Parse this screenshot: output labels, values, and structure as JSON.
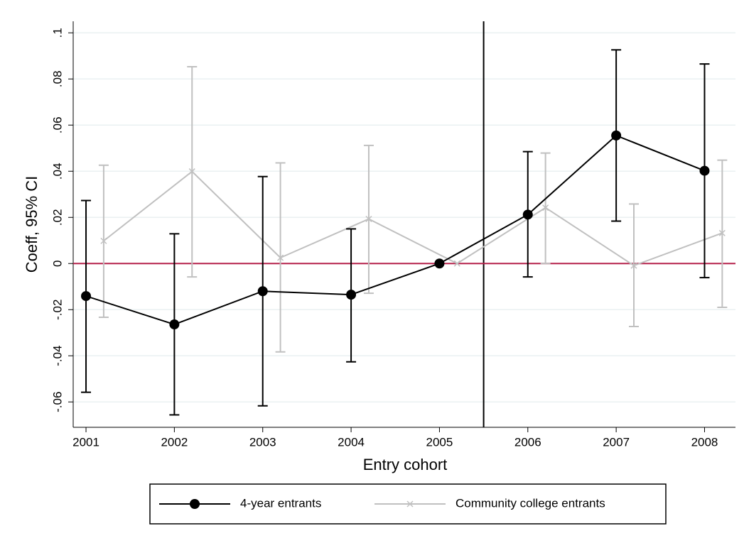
{
  "chart_data": {
    "type": "errorbar-line",
    "x_label": "Entry cohort",
    "y_label": "Coeff, 95% CI",
    "xlim": [
      2000.855,
      2008.35
    ],
    "xticks": [
      2001,
      2002,
      2003,
      2004,
      2005,
      2006,
      2007,
      2008
    ],
    "ylim": [
      -0.071,
      0.105
    ],
    "yticks": [
      {
        "value": -0.06,
        "label": "-.06"
      },
      {
        "value": -0.04,
        "label": "-.04"
      },
      {
        "value": -0.02,
        "label": "-.02"
      },
      0,
      {
        "value": 0.02,
        "label": ".02"
      },
      {
        "value": 0.04,
        "label": ".04"
      },
      {
        "value": 0.06,
        "label": ".06"
      },
      {
        "value": 0.08,
        "label": ".08"
      },
      {
        "value": 0.1,
        "label": ".1"
      }
    ],
    "grid": true,
    "xline": 2005.5,
    "yline": 0,
    "yline_color": "#b5204a",
    "legend": "bottom",
    "series": [
      {
        "name": "4-year entrants",
        "color": "#000000",
        "marker": "circle",
        "x": [
          2001,
          2002,
          2003,
          2004,
          2005,
          2006,
          2007,
          2008
        ],
        "values": [
          -0.0141,
          -0.0264,
          -0.012,
          -0.0135,
          0,
          0.0212,
          0.0555,
          0.0402
        ],
        "lower": [
          -0.0558,
          -0.0656,
          -0.0617,
          -0.0426,
          null,
          -0.0058,
          0.0184,
          -0.0061
        ],
        "upper": [
          0.0273,
          0.0129,
          0.0377,
          0.015,
          null,
          0.0485,
          0.0926,
          0.0865
        ]
      },
      {
        "name": "Community college entrants",
        "color": "#c0c0c0",
        "marker": "x",
        "x": [
          2001.2,
          2002.2,
          2003.2,
          2004.2,
          2005.2,
          2006.2,
          2007.2,
          2008.2
        ],
        "values": [
          0.0098,
          0.0399,
          0.0025,
          0.0193,
          0,
          0.0242,
          -0.0009,
          0.0132
        ],
        "lower": [
          -0.0233,
          -0.0058,
          -0.0383,
          -0.0129,
          null,
          0,
          -0.0273,
          -0.019
        ],
        "upper": [
          0.0426,
          0.0853,
          0.0436,
          0.0512,
          null,
          0.0479,
          0.0258,
          0.0448
        ]
      }
    ]
  }
}
